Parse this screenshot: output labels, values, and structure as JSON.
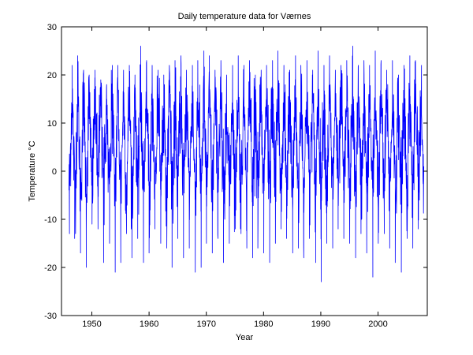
{
  "chart_data": {
    "type": "line",
    "title": "Daily temperature data for Værnes",
    "xlabel": "Year",
    "ylabel": "Temperature °C",
    "xlim": [
      1944.7,
      2008.6
    ],
    "ylim": [
      -30,
      30
    ],
    "xticks": [
      1950,
      1960,
      1970,
      1980,
      1990,
      2000
    ],
    "yticks": [
      -30,
      -20,
      -10,
      0,
      10,
      20,
      30
    ],
    "grid": false,
    "legend": "none",
    "series": [
      {
        "color": "#0000ff",
        "x_start": 1946.0,
        "x_end": 2008.0,
        "annual_mean": 5.5,
        "seasonal_amplitude": 8.5,
        "daily_variability": 4.5,
        "annual_peaks": [
          22,
          24,
          21,
          20,
          21,
          19,
          18,
          22,
          22,
          21,
          22,
          20,
          26,
          23,
          22,
          21,
          20,
          22,
          23,
          24,
          21,
          22,
          23,
          25,
          24,
          21,
          23,
          20,
          22,
          24,
          22,
          23,
          20,
          21,
          22,
          23,
          25,
          22,
          21,
          24,
          22,
          23,
          21,
          25,
          22,
          24,
          21,
          22,
          23,
          26,
          22,
          23,
          22,
          25,
          23,
          21,
          23,
          20,
          22,
          24,
          23,
          22
        ],
        "annual_lows": [
          -13,
          -14,
          -17,
          -20,
          -11,
          -12,
          -19,
          -15,
          -21,
          -19,
          -13,
          -18,
          -14,
          -19,
          -17,
          -12,
          -15,
          -16,
          -20,
          -14,
          -18,
          -16,
          -21,
          -20,
          -15,
          -17,
          -14,
          -19,
          -15,
          -12,
          -13,
          -16,
          -18,
          -16,
          -17,
          -19,
          -15,
          -12,
          -14,
          -17,
          -16,
          -18,
          -14,
          -19,
          -23,
          -15,
          -16,
          -12,
          -14,
          -15,
          -18,
          -13,
          -17,
          -22,
          -15,
          -13,
          -16,
          -19,
          -21,
          -14,
          -16,
          -12
        ]
      }
    ],
    "colors": {
      "line": "#0000ff",
      "axes": "#000000",
      "background": "#ffffff"
    }
  }
}
